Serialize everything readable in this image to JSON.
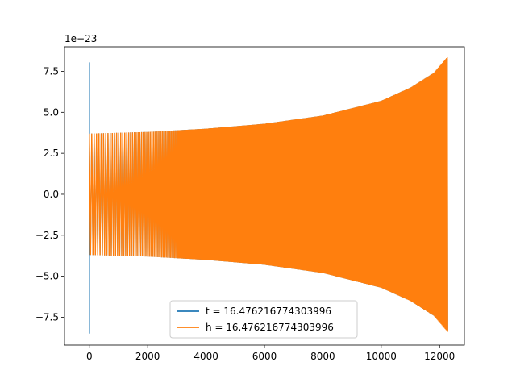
{
  "chart_data": {
    "type": "line",
    "title": "",
    "xlabel": "",
    "ylabel": "",
    "offset_label": "1e−23",
    "x_range": [
      -850,
      12850
    ],
    "y_range": [
      -9.2,
      9.0
    ],
    "xticks": [
      0,
      2000,
      4000,
      6000,
      8000,
      10000,
      12000
    ],
    "xtick_labels": [
      "0",
      "2000",
      "4000",
      "6000",
      "8000",
      "10000",
      "12000"
    ],
    "yticks": [
      7.5,
      5.0,
      2.5,
      0.0,
      -2.5,
      -5.0,
      -7.5
    ],
    "ytick_labels": [
      "7.5",
      "5.0",
      "2.5",
      "0.0",
      "−2.5",
      "−5.0",
      "−7.5"
    ],
    "grid": false,
    "legend_placement": "lower center",
    "series": [
      {
        "name": "t = 16.476216774303996",
        "color": "#1f77b4",
        "spike": {
          "x": 0,
          "ymin": -8.5,
          "ymax": 8.05
        },
        "envelope": {
          "x_start": 0,
          "x_end": 12280,
          "amplitude_points": [
            [
              0,
              3.7
            ],
            [
              2000,
              3.8
            ],
            [
              4000,
              4.0
            ],
            [
              6000,
              4.3
            ],
            [
              8000,
              4.8
            ],
            [
              10000,
              5.7
            ],
            [
              11000,
              6.5
            ],
            [
              11800,
              7.4
            ],
            [
              12280,
              8.3
            ]
          ],
          "dense_from": 3000
        }
      },
      {
        "name": "h = 16.476216774303996",
        "color": "#ff7f0e",
        "envelope": {
          "x_start": 0,
          "x_end": 12280,
          "amplitude_points": [
            [
              0,
              3.7
            ],
            [
              2000,
              3.8
            ],
            [
              4000,
              4.0
            ],
            [
              6000,
              4.3
            ],
            [
              8000,
              4.8
            ],
            [
              10000,
              5.7
            ],
            [
              11000,
              6.5
            ],
            [
              11800,
              7.4
            ],
            [
              12280,
              8.4
            ]
          ],
          "dense_from": 3000
        }
      }
    ]
  }
}
